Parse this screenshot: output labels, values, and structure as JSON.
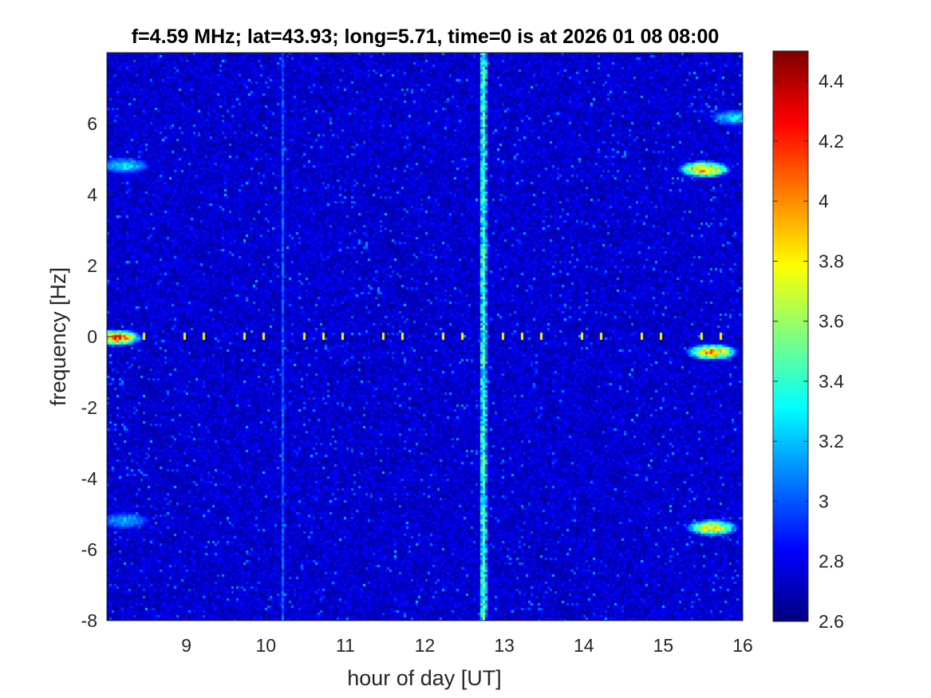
{
  "chart_data": {
    "type": "heatmap",
    "title": "f=4.59 MHz;  lat=43.93; long=5.71, time=0 is at 2026 01 08 08:00",
    "xlabel": "hour of day [UT]",
    "ylabel": "frequency [Hz]",
    "xlim": [
      8,
      16
    ],
    "ylim": [
      -8,
      8
    ],
    "xticks": [
      9,
      10,
      11,
      12,
      13,
      14,
      15,
      16
    ],
    "xtick_labels": [
      "9",
      "10",
      "11",
      "12",
      "13",
      "14",
      "15",
      "16"
    ],
    "yticks": [
      -8,
      -6,
      -4,
      -2,
      0,
      2,
      4,
      6
    ],
    "ytick_labels": [
      "-8",
      "-6",
      "-4",
      "-2",
      "0",
      "2",
      "4",
      "6"
    ],
    "colormap": "jet",
    "colorbar": {
      "range": [
        2.6,
        4.5
      ],
      "ticks": [
        2.6,
        2.8,
        3,
        3.2,
        3.4,
        3.6,
        3.8,
        4,
        4.2,
        4.4
      ],
      "tick_labels": [
        "2.6",
        "2.8",
        "3",
        "3.2",
        "3.4",
        "3.6",
        "3.8",
        "4",
        "4.2",
        "4.4"
      ]
    },
    "background_level": 2.75,
    "features": [
      {
        "kind": "vertical-band",
        "x": 12.72,
        "half_width": 0.04,
        "level": 3.5
      },
      {
        "kind": "vertical-line",
        "x": 10.2,
        "level": 3.0
      },
      {
        "kind": "horizontal-dashes",
        "y": 0.05,
        "x_range": [
          8.2,
          16
        ],
        "spacing": 0.25,
        "level": 3.8
      },
      {
        "kind": "blob",
        "x": 8.1,
        "y": 0,
        "level": 4.4
      },
      {
        "kind": "blob",
        "x": 8.2,
        "y": 4.85,
        "level": 3.4
      },
      {
        "kind": "blob",
        "x": 8.2,
        "y": -5.15,
        "level": 3.3
      },
      {
        "kind": "blob",
        "x": 15.5,
        "y": 4.75,
        "level": 4.3
      },
      {
        "kind": "blob",
        "x": 15.6,
        "y": -0.4,
        "level": 4.2
      },
      {
        "kind": "blob",
        "x": 15.6,
        "y": -5.35,
        "level": 4.0
      },
      {
        "kind": "blob",
        "x": 15.9,
        "y": 6.2,
        "level": 3.4
      }
    ]
  }
}
